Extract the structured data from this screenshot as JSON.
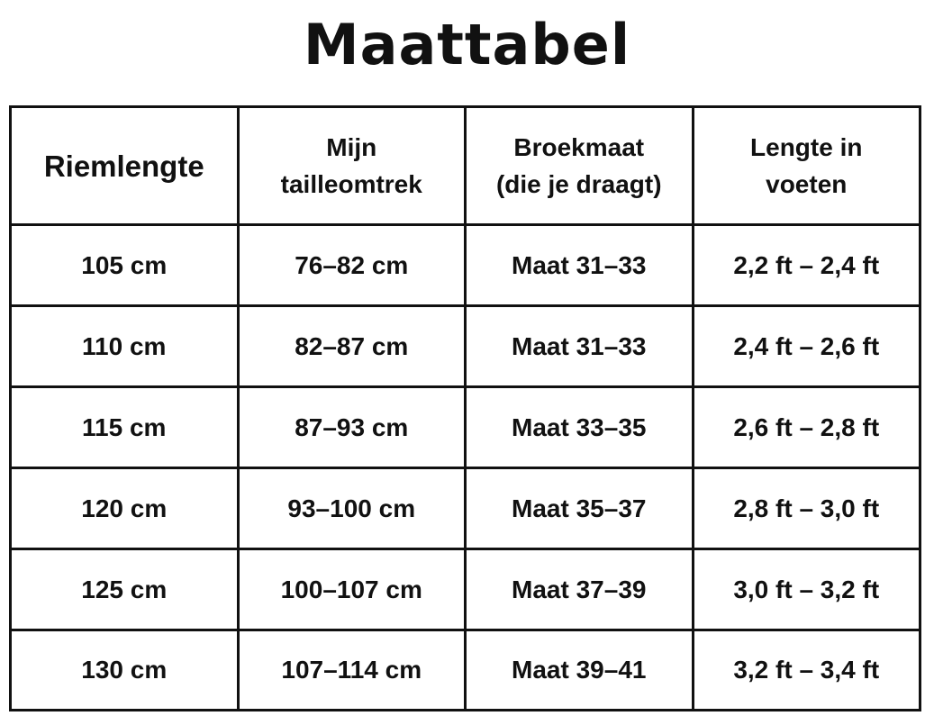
{
  "title": "Maattabel",
  "table": {
    "headers": [
      [
        "Riemlengte"
      ],
      [
        "Mijn",
        "tailleomtrek"
      ],
      [
        "Broekmaat",
        "(die je draagt)"
      ],
      [
        "Lengte in",
        "voeten"
      ]
    ],
    "rows": [
      [
        "105 cm",
        "76–82 cm",
        "Maat 31–33",
        "2,2 ft – 2,4 ft"
      ],
      [
        "110 cm",
        "82–87 cm",
        "Maat 31–33",
        "2,4 ft – 2,6 ft"
      ],
      [
        "115 cm",
        "87–93 cm",
        "Maat 33–35",
        "2,6 ft – 2,8 ft"
      ],
      [
        "120 cm",
        "93–100 cm",
        "Maat 35–37",
        "2,8 ft – 3,0 ft"
      ],
      [
        "125 cm",
        "100–107 cm",
        "Maat 37–39",
        "3,0 ft – 3,2 ft"
      ],
      [
        "130 cm",
        "107–114 cm",
        "Maat 39–41",
        "3,2 ft – 3,4 ft"
      ]
    ]
  },
  "colors": {
    "text": "#111111",
    "border": "#111111",
    "background": "#ffffff"
  }
}
